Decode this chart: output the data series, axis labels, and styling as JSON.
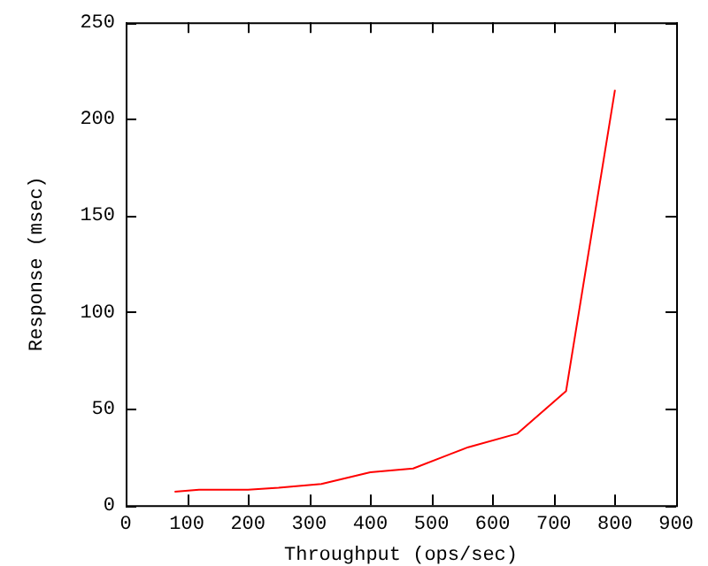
{
  "chart_data": {
    "type": "line",
    "xlabel": "Throughput (ops/sec)",
    "ylabel": "Response (msec)",
    "x": [
      80,
      120,
      200,
      250,
      320,
      400,
      470,
      560,
      640,
      720,
      800
    ],
    "series": [
      {
        "color": "#ff0000",
        "values": [
          7,
          8,
          8,
          9,
          11,
          17,
          19,
          30,
          37,
          59,
          215
        ]
      }
    ],
    "xlim": [
      0,
      900
    ],
    "xticks": [
      0,
      100,
      200,
      300,
      400,
      500,
      600,
      700,
      800,
      900
    ],
    "ylim": [
      0,
      250
    ],
    "yticks": [
      0,
      50,
      100,
      150,
      200,
      250
    ],
    "grid": false,
    "legend": false,
    "marker": "none",
    "line_style": "solid"
  }
}
